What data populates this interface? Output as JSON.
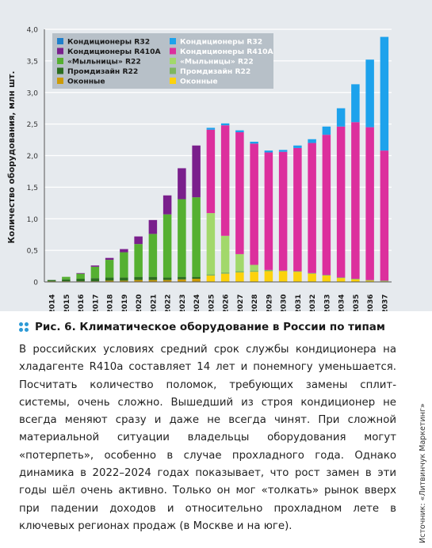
{
  "caption": "Рис. 6. Климатическое оборудование в России по типам",
  "body_text": "В российских условиях средний срок службы кондиционера на хладагенте R410a составляет 14 лет и понемногу уменьшается. Посчитать количество поломок, требующих замены сплит-системы, очень сложно. Вышедший из строя кондиционер не всегда меняют сразу и даже не всегда чинят. При сложной материальной ситуации владельцы оборудования могут «потерпеть», особенно в случае прохладного года. Однако динамика в 2022–2024 годах показывает, что рост замен в эти годы шёл очень активно. Только он мог «толкать» рынок вверх при падении доходов и относительно прохладном лете в ключевых регионах продаж (в Москве и на юге).",
  "source_note": "Источник: «Литвинчук Маркетинг»",
  "chart_data": {
    "type": "bar",
    "stacked": true,
    "ylabel": "Количество оборудования, млн шт.",
    "xlabel": "",
    "ylim": [
      0,
      4.0
    ],
    "yticks": [
      "0",
      "0,5",
      "1,0",
      "1,5",
      "2,0",
      "2,5",
      "3,0",
      "3,5",
      "4,0"
    ],
    "grid": true,
    "legend_position": "top-left",
    "categories": [
      "2014",
      "2015",
      "2016",
      "2017",
      "2018",
      "2019",
      "2020",
      "2021",
      "2022",
      "2023",
      "2024",
      "2025",
      "2026",
      "2027",
      "2028",
      "2029",
      "2030",
      "2031",
      "2032",
      "2033",
      "2034",
      "2035",
      "2036",
      "2037"
    ],
    "forecast_from": "2025",
    "legend_columns": [
      [
        "Кондиционеры R32",
        "Кондиционеры R410A",
        "«Мыльницы» R22",
        "Промдизайн R22",
        "Оконные"
      ],
      [
        "Кондиционеры R32",
        "Кондиционеры R410A",
        "«Мыльницы» R22",
        "Промдизайн R22",
        "Оконные"
      ]
    ],
    "colors_actual": [
      "#1f7fcb",
      "#7a1f8c",
      "#55b031",
      "#2c6e20",
      "#cc9a06"
    ],
    "colors_forecast": [
      "#1da2ec",
      "#dc2f9d",
      "#a2d86b",
      "#7eb65f",
      "#fcd20c"
    ],
    "series": [
      {
        "name": "Оконные",
        "values": [
          0.01,
          0.01,
          0.01,
          0.01,
          0.02,
          0.02,
          0.03,
          0.03,
          0.03,
          0.04,
          0.05,
          0.1,
          0.13,
          0.15,
          0.16,
          0.17,
          0.17,
          0.16,
          0.13,
          0.1,
          0.06,
          0.04,
          0.02,
          0.01
        ]
      },
      {
        "name": "Промдизайн R22",
        "values": [
          0.02,
          0.03,
          0.04,
          0.05,
          0.05,
          0.05,
          0.05,
          0.05,
          0.04,
          0.04,
          0.03,
          0.02,
          0.02,
          0.02,
          0.02,
          0.02,
          0.01,
          0.01,
          0.01,
          0.01,
          0.01,
          0.01,
          0.01,
          0.01
        ]
      },
      {
        "name": "«Мыльницы» R22",
        "values": [
          0,
          0.04,
          0.08,
          0.18,
          0.28,
          0.4,
          0.52,
          0.68,
          1.0,
          1.23,
          1.26,
          0.97,
          0.58,
          0.27,
          0.09,
          0,
          0,
          0,
          0,
          0,
          0,
          0,
          0,
          0
        ]
      },
      {
        "name": "Кондиционеры R410A",
        "values": [
          0,
          0,
          0.01,
          0.02,
          0.03,
          0.05,
          0.12,
          0.22,
          0.3,
          0.49,
          0.82,
          1.32,
          1.75,
          1.93,
          1.92,
          1.86,
          1.88,
          1.95,
          2.06,
          2.22,
          2.39,
          2.48,
          2.42,
          2.06
        ]
      },
      {
        "name": "Кондиционеры R32",
        "values": [
          0,
          0,
          0,
          0,
          0,
          0,
          0,
          0,
          0,
          0,
          0,
          0.03,
          0.03,
          0.03,
          0.03,
          0.03,
          0.03,
          0.04,
          0.06,
          0.13,
          0.29,
          0.6,
          1.07,
          1.8
        ]
      }
    ]
  }
}
